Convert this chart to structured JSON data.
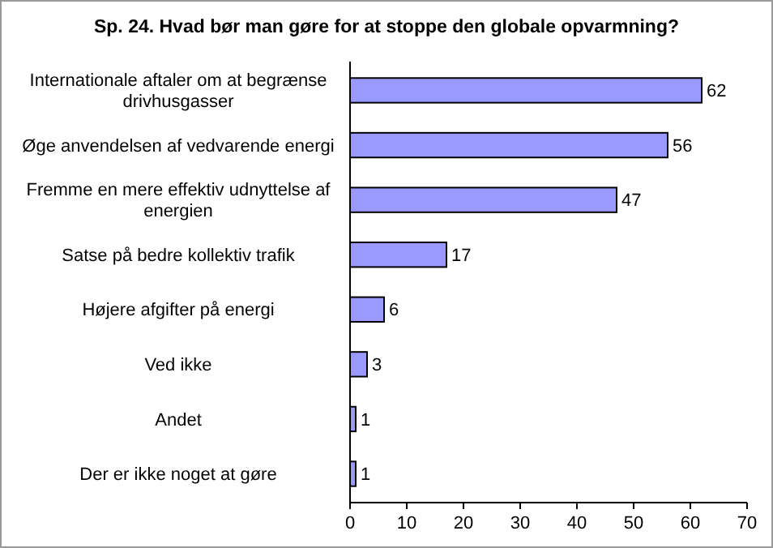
{
  "chart_data": {
    "type": "bar",
    "orientation": "horizontal",
    "title": "Sp. 24. Hvad bør man gøre for at stoppe den globale opvarmning?",
    "categories": [
      "Internationale aftaler om at begrænse drivhusgasser",
      "Øge anvendelsen af vedvarende energi",
      "Fremme en mere effektiv udnyttelse af energien",
      "Satse på bedre kollektiv trafik",
      "Højere afgifter på energi",
      "Ved ikke",
      "Andet",
      "Der er ikke noget at gøre"
    ],
    "values": [
      62,
      56,
      47,
      17,
      6,
      3,
      1,
      1
    ],
    "color": "#9999ff",
    "data_labels": true,
    "xlim": [
      0,
      70
    ],
    "xticks": [
      0,
      10,
      20,
      30,
      40,
      50,
      60,
      70
    ],
    "grid": false
  }
}
